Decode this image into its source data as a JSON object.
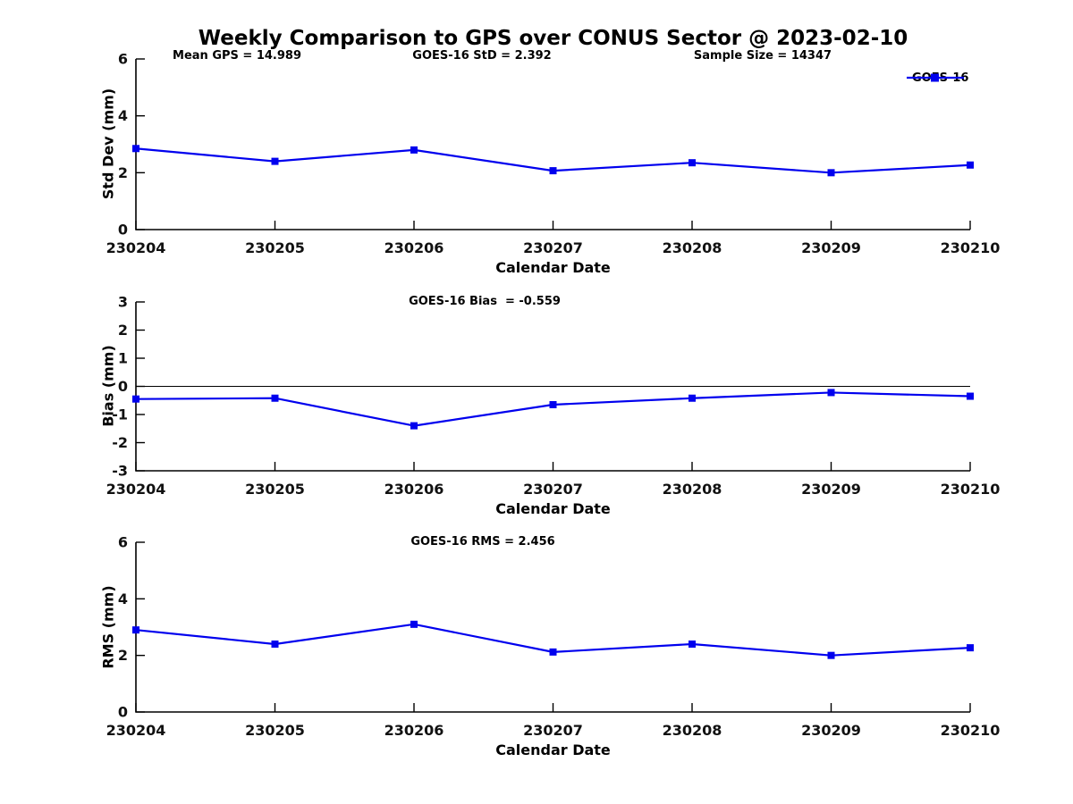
{
  "title": "Weekly Comparison to GPS over CONUS Sector @ 2023-02-10",
  "accent_color": "#0000EE",
  "chart_data": [
    {
      "type": "line",
      "ylabel": "Std Dev (mm)",
      "xlabel": "Calendar Date",
      "categories": [
        "230204",
        "230205",
        "230206",
        "230207",
        "230208",
        "230209",
        "230210"
      ],
      "series": [
        {
          "name": "GOES-16",
          "color": "#0000EE",
          "marker": "square",
          "values": [
            2.85,
            2.4,
            2.8,
            2.07,
            2.35,
            2.0,
            2.27
          ]
        }
      ],
      "ylim": [
        0,
        6
      ],
      "yticks": [
        0,
        2,
        4,
        6
      ],
      "grid": false,
      "annotations": [
        "Mean GPS = 14.989",
        "GOES-16 StD = 2.392",
        "Sample Size = 14347"
      ],
      "legend": {
        "label": "GOES-16",
        "position": "top-right"
      }
    },
    {
      "type": "line",
      "ylabel": "Bias (mm)",
      "xlabel": "Calendar Date",
      "categories": [
        "230204",
        "230205",
        "230206",
        "230207",
        "230208",
        "230209",
        "230210"
      ],
      "series": [
        {
          "name": "GOES-16",
          "color": "#0000EE",
          "marker": "square",
          "values": [
            -0.45,
            -0.42,
            -1.4,
            -0.65,
            -0.42,
            -0.22,
            -0.35
          ]
        }
      ],
      "ylim": [
        -3,
        3
      ],
      "yticks": [
        -3,
        -2,
        -1,
        0,
        1,
        2,
        3
      ],
      "zero_line": true,
      "grid": false,
      "annotations": [
        "GOES-16 Bias  = -0.559"
      ]
    },
    {
      "type": "line",
      "ylabel": "RMS (mm)",
      "xlabel": "Calendar Date",
      "categories": [
        "230204",
        "230205",
        "230206",
        "230207",
        "230208",
        "230209",
        "230210"
      ],
      "series": [
        {
          "name": "GOES-16",
          "color": "#0000EE",
          "marker": "square",
          "values": [
            2.9,
            2.4,
            3.1,
            2.12,
            2.4,
            2.0,
            2.27
          ]
        }
      ],
      "ylim": [
        0,
        6
      ],
      "yticks": [
        0,
        2,
        4,
        6
      ],
      "grid": false,
      "annotations": [
        "GOES-16 RMS = 2.456"
      ]
    }
  ]
}
